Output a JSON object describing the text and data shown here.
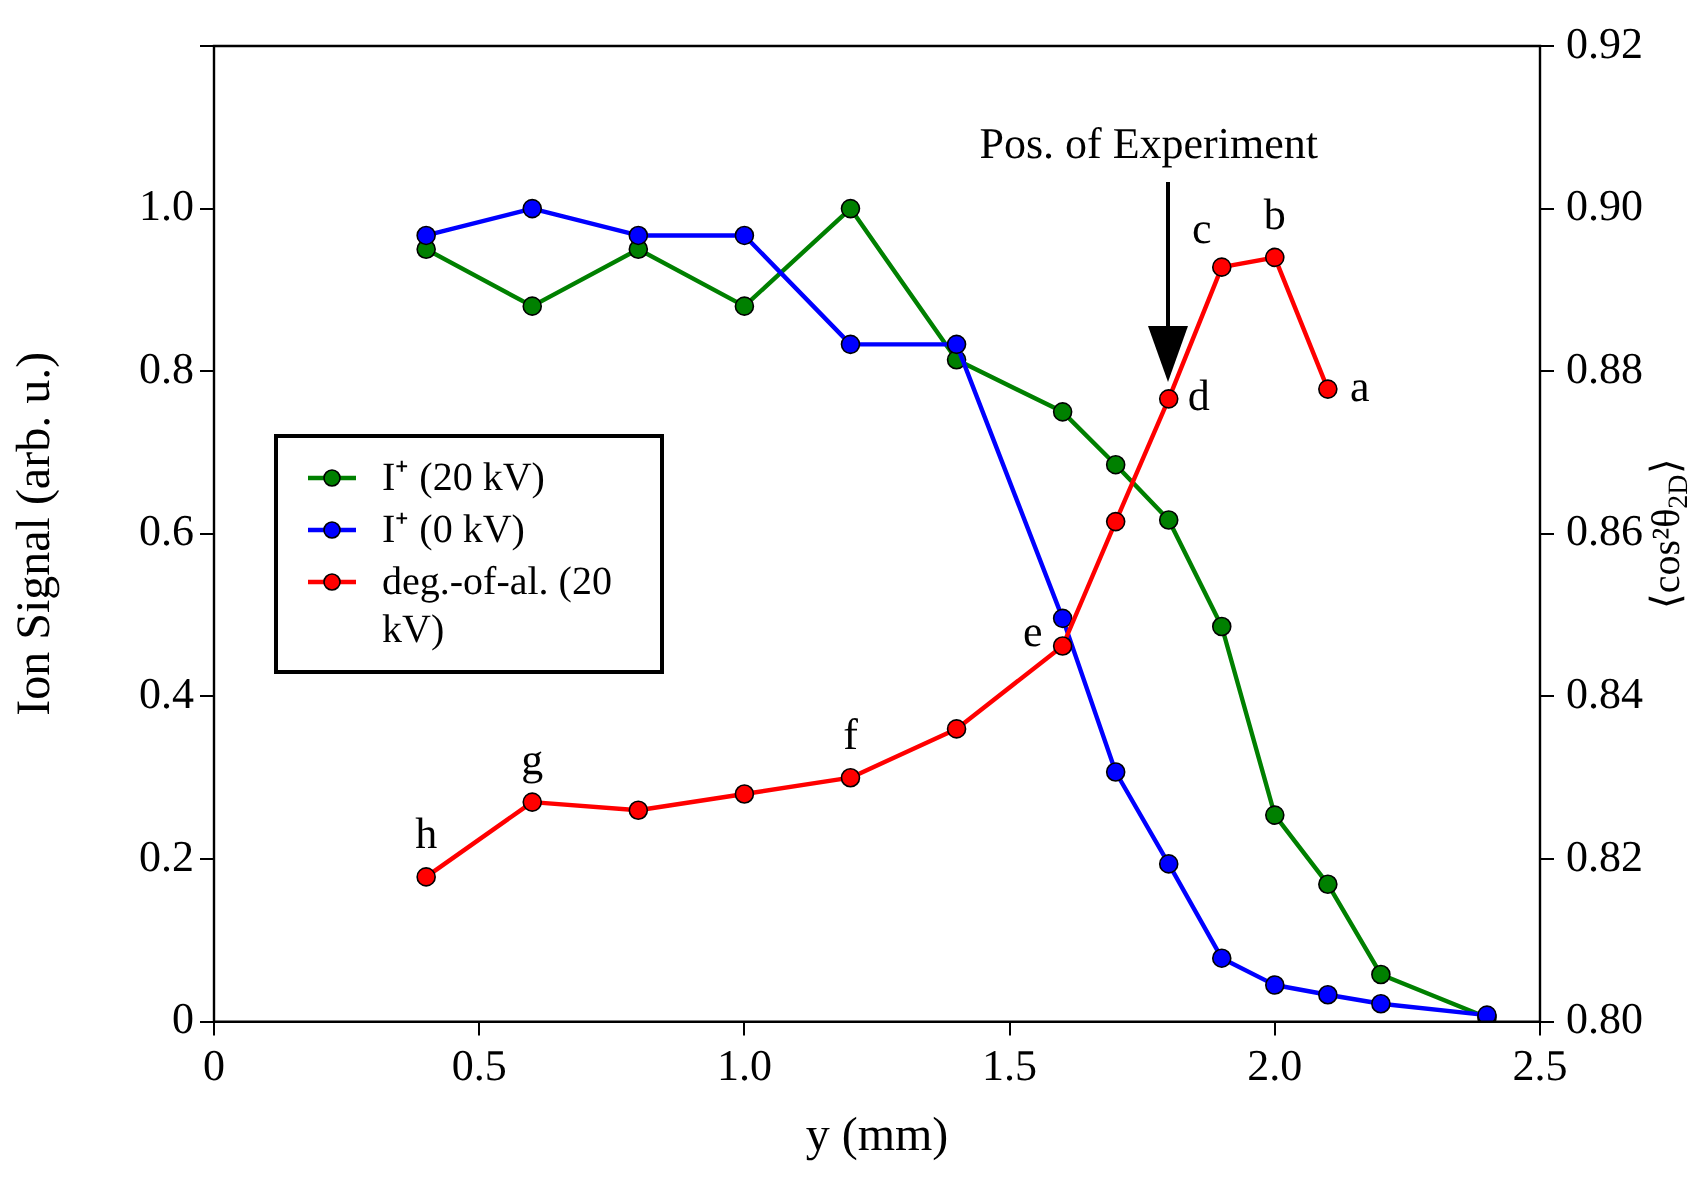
{
  "chart_data": {
    "type": "line",
    "xlabel": "y (mm)",
    "ylabel": "Ion Signal (arb. u.)",
    "y2label": "⟨cos²θ$_{2D}$⟩",
    "xlim": [
      0,
      2.5
    ],
    "xticks": [
      0,
      0.5,
      {
        "value": 1,
        "label": "1.0"
      },
      1.5,
      {
        "value": 2,
        "label": "2.0"
      },
      2.5
    ],
    "ylim": [
      0,
      1.2
    ],
    "yticks": [
      0,
      0.2,
      0.4,
      0.6,
      0.8,
      {
        "value": 1,
        "label": "1.0"
      },
      {
        "value": 1.2,
        "label": null
      }
    ],
    "y2lim": [
      0.8,
      0.92
    ],
    "y2ticks": [
      {
        "value": 0.8,
        "label": "0.80"
      },
      {
        "value": 0.82,
        "label": "0.82"
      },
      {
        "value": 0.84,
        "label": "0.84"
      },
      {
        "value": 0.86,
        "label": "0.86"
      },
      {
        "value": 0.88,
        "label": "0.88"
      },
      {
        "value": 0.9,
        "label": "0.90"
      },
      {
        "value": 0.92,
        "label": "0.92"
      }
    ],
    "series": [
      {
        "name": "I⁺ (20 kV)",
        "color": "#008000",
        "x": [
          0.4,
          0.6,
          0.8,
          1.0,
          1.2,
          1.4,
          1.6,
          1.7,
          1.8,
          1.9,
          2.0,
          2.1,
          2.2,
          2.4
        ],
        "values": [
          0.95,
          0.88,
          0.95,
          0.88,
          1.0,
          0.814,
          0.75,
          0.685,
          0.617,
          0.486,
          0.254,
          0.169,
          0.058,
          0.005
        ]
      },
      {
        "name": "I⁺ (0 kV)",
        "color": "#0000ff",
        "x": [
          0.4,
          0.6,
          0.8,
          1.0,
          1.2,
          1.4,
          1.6,
          1.7,
          1.8,
          1.9,
          2.0,
          2.1,
          2.2,
          2.4
        ],
        "values": [
          0.967,
          1.0,
          0.967,
          0.967,
          0.833,
          0.833,
          0.496,
          0.307,
          0.194,
          0.078,
          0.045,
          0.033,
          0.022,
          0.008
        ]
      },
      {
        "name": "deg.-of-al. (20 kV)",
        "color": "#ff0000",
        "axis": "y2",
        "x": [
          0.4,
          0.6,
          0.8,
          1.0,
          1.2,
          1.4,
          1.6,
          1.7,
          1.8,
          1.9,
          2.0,
          2.1
        ],
        "values": [
          0.8178,
          0.827,
          0.826,
          0.828,
          0.83,
          0.836,
          0.8462,
          0.8615,
          0.8766,
          0.8928,
          0.894,
          0.8778
        ]
      }
    ],
    "annotations": [
      "Pos. of Experiment",
      "h",
      "g",
      "f",
      "e",
      "d",
      "c",
      "b",
      "a"
    ],
    "legend": "left",
    "marker": "circle",
    "line_style": "solid",
    "grid": false
  }
}
